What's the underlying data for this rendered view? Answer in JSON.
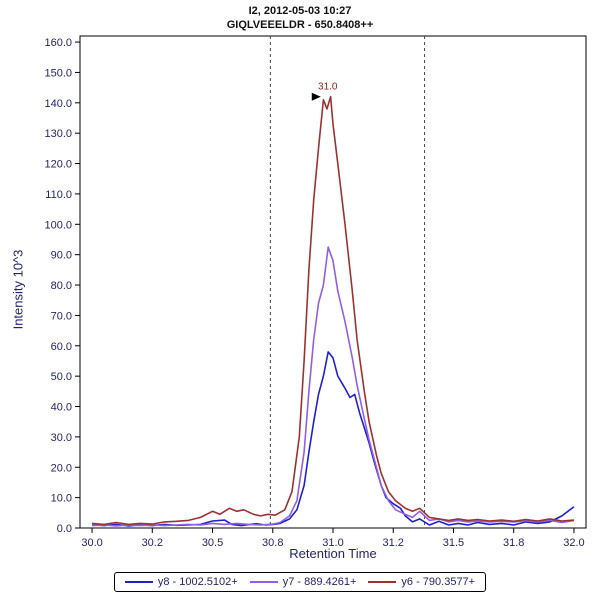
{
  "header": {
    "title_line1": "I2, 2012-05-03 10:27",
    "title_line2": "GIQLVEEELDR - 650.8408++"
  },
  "chart_data": {
    "type": "line",
    "title": "I2, 2012-05-03 10:27",
    "subtitle": "GIQLVEEELDR - 650.8408++",
    "xlabel": "Retention Time",
    "ylabel": "Intensity 10^3",
    "xlim": [
      29.95,
      32.05
    ],
    "ylim": [
      0,
      162
    ],
    "grid": false,
    "legend_position": "bottom",
    "x_ticks": [
      {
        "v": 30.0,
        "label": "30.0"
      },
      {
        "v": 30.25,
        "label": "30.2"
      },
      {
        "v": 30.5,
        "label": "30.5"
      },
      {
        "v": 30.75,
        "label": "30.8"
      },
      {
        "v": 31.0,
        "label": "31.0"
      },
      {
        "v": 31.25,
        "label": "31.2"
      },
      {
        "v": 31.5,
        "label": "31.5"
      },
      {
        "v": 31.75,
        "label": "31.8"
      },
      {
        "v": 32.0,
        "label": "32.0"
      }
    ],
    "y_ticks": [
      {
        "v": 0,
        "label": "0.0"
      },
      {
        "v": 10,
        "label": "10.0"
      },
      {
        "v": 20,
        "label": "20.0"
      },
      {
        "v": 30,
        "label": "30.0"
      },
      {
        "v": 40,
        "label": "40.0"
      },
      {
        "v": 50,
        "label": "50.0"
      },
      {
        "v": 60,
        "label": "60.0"
      },
      {
        "v": 70,
        "label": "70.0"
      },
      {
        "v": 80,
        "label": "80.0"
      },
      {
        "v": 90,
        "label": "90.0"
      },
      {
        "v": 100,
        "label": "100.0"
      },
      {
        "v": 110,
        "label": "110.0"
      },
      {
        "v": 120,
        "label": "120.0"
      },
      {
        "v": 130,
        "label": "130.0"
      },
      {
        "v": 140,
        "label": "140.0"
      },
      {
        "v": 150,
        "label": "150.0"
      },
      {
        "v": 160,
        "label": "160.0"
      }
    ],
    "integration_boundaries": [
      30.74,
      31.38
    ],
    "peak_annotation": {
      "x": 30.97,
      "y": 142,
      "label": "31.0"
    },
    "series": [
      {
        "name": "y8 - 1002.5102+",
        "color": "#2020cc",
        "points": [
          [
            30.0,
            1.0
          ],
          [
            30.05,
            0.8
          ],
          [
            30.1,
            1.2
          ],
          [
            30.15,
            0.7
          ],
          [
            30.2,
            1.0
          ],
          [
            30.25,
            0.8
          ],
          [
            30.3,
            1.2
          ],
          [
            30.35,
            0.9
          ],
          [
            30.4,
            1.0
          ],
          [
            30.45,
            1.2
          ],
          [
            30.5,
            2.3
          ],
          [
            30.55,
            2.6
          ],
          [
            30.58,
            1.2
          ],
          [
            30.62,
            0.8
          ],
          [
            30.68,
            1.4
          ],
          [
            30.72,
            1.0
          ],
          [
            30.75,
            1.2
          ],
          [
            30.78,
            1.5
          ],
          [
            30.82,
            3.0
          ],
          [
            30.85,
            6.0
          ],
          [
            30.88,
            14.0
          ],
          [
            30.9,
            25.0
          ],
          [
            30.92,
            35.0
          ],
          [
            30.94,
            44.0
          ],
          [
            30.96,
            50.0
          ],
          [
            30.98,
            58.0
          ],
          [
            31.0,
            56.0
          ],
          [
            31.02,
            50.0
          ],
          [
            31.05,
            46.0
          ],
          [
            31.07,
            43.0
          ],
          [
            31.09,
            44.0
          ],
          [
            31.11,
            38.0
          ],
          [
            31.13,
            33.0
          ],
          [
            31.15,
            28.0
          ],
          [
            31.17,
            22.0
          ],
          [
            31.2,
            14.0
          ],
          [
            31.22,
            10.0
          ],
          [
            31.25,
            8.0
          ],
          [
            31.28,
            6.5
          ],
          [
            31.3,
            4.0
          ],
          [
            31.33,
            2.0
          ],
          [
            31.36,
            3.0
          ],
          [
            31.4,
            1.0
          ],
          [
            31.44,
            2.2
          ],
          [
            31.48,
            1.0
          ],
          [
            31.52,
            1.5
          ],
          [
            31.56,
            1.0
          ],
          [
            31.6,
            1.8
          ],
          [
            31.65,
            1.2
          ],
          [
            31.7,
            1.5
          ],
          [
            31.75,
            1.0
          ],
          [
            31.8,
            2.0
          ],
          [
            31.85,
            1.5
          ],
          [
            31.9,
            2.0
          ],
          [
            31.95,
            4.0
          ],
          [
            32.0,
            7.0
          ]
        ]
      },
      {
        "name": "y7 - 889.4261+",
        "color": "#8f5fe8",
        "points": [
          [
            30.0,
            0.8
          ],
          [
            30.05,
            1.0
          ],
          [
            30.1,
            0.7
          ],
          [
            30.15,
            1.0
          ],
          [
            30.2,
            0.8
          ],
          [
            30.25,
            1.0
          ],
          [
            30.3,
            0.8
          ],
          [
            30.35,
            1.0
          ],
          [
            30.4,
            1.2
          ],
          [
            30.45,
            1.0
          ],
          [
            30.5,
            1.5
          ],
          [
            30.55,
            1.2
          ],
          [
            30.6,
            1.5
          ],
          [
            30.65,
            1.2
          ],
          [
            30.7,
            1.0
          ],
          [
            30.75,
            1.3
          ],
          [
            30.78,
            1.8
          ],
          [
            30.82,
            4.0
          ],
          [
            30.85,
            9.0
          ],
          [
            30.88,
            25.0
          ],
          [
            30.9,
            45.0
          ],
          [
            30.92,
            62.0
          ],
          [
            30.94,
            74.0
          ],
          [
            30.96,
            80.0
          ],
          [
            30.98,
            92.5
          ],
          [
            31.0,
            88.0
          ],
          [
            31.02,
            78.0
          ],
          [
            31.05,
            68.0
          ],
          [
            31.08,
            56.0
          ],
          [
            31.1,
            47.0
          ],
          [
            31.13,
            36.0
          ],
          [
            31.15,
            29.0
          ],
          [
            31.18,
            20.0
          ],
          [
            31.2,
            14.0
          ],
          [
            31.23,
            9.0
          ],
          [
            31.26,
            6.0
          ],
          [
            31.3,
            4.5
          ],
          [
            31.33,
            3.5
          ],
          [
            31.36,
            5.5
          ],
          [
            31.4,
            2.5
          ],
          [
            31.44,
            3.0
          ],
          [
            31.48,
            2.0
          ],
          [
            31.52,
            2.5
          ],
          [
            31.56,
            2.0
          ],
          [
            31.6,
            2.3
          ],
          [
            31.65,
            2.0
          ],
          [
            31.7,
            2.2
          ],
          [
            31.75,
            2.0
          ],
          [
            31.8,
            2.4
          ],
          [
            31.85,
            2.0
          ],
          [
            31.9,
            2.5
          ],
          [
            31.95,
            1.8
          ],
          [
            32.0,
            2.5
          ]
        ]
      },
      {
        "name": "y6 - 790.3577+",
        "color": "#9b3232",
        "points": [
          [
            30.0,
            1.5
          ],
          [
            30.05,
            1.2
          ],
          [
            30.1,
            1.8
          ],
          [
            30.15,
            1.2
          ],
          [
            30.2,
            1.5
          ],
          [
            30.25,
            1.3
          ],
          [
            30.3,
            2.0
          ],
          [
            30.35,
            2.2
          ],
          [
            30.4,
            2.5
          ],
          [
            30.45,
            3.5
          ],
          [
            30.5,
            5.5
          ],
          [
            30.53,
            4.5
          ],
          [
            30.57,
            6.5
          ],
          [
            30.6,
            5.5
          ],
          [
            30.63,
            6.0
          ],
          [
            30.67,
            4.5
          ],
          [
            30.7,
            4.0
          ],
          [
            30.73,
            4.5
          ],
          [
            30.76,
            4.2
          ],
          [
            30.8,
            6.0
          ],
          [
            30.83,
            12.0
          ],
          [
            30.86,
            30.0
          ],
          [
            30.88,
            55.0
          ],
          [
            30.9,
            85.0
          ],
          [
            30.92,
            108.0
          ],
          [
            30.94,
            125.0
          ],
          [
            30.96,
            141.0
          ],
          [
            30.975,
            138.0
          ],
          [
            30.99,
            142.0
          ],
          [
            31.0,
            133.0
          ],
          [
            31.02,
            120.0
          ],
          [
            31.05,
            100.0
          ],
          [
            31.08,
            78.0
          ],
          [
            31.1,
            62.0
          ],
          [
            31.13,
            45.0
          ],
          [
            31.15,
            35.0
          ],
          [
            31.18,
            24.0
          ],
          [
            31.2,
            18.0
          ],
          [
            31.23,
            12.0
          ],
          [
            31.26,
            9.0
          ],
          [
            31.3,
            6.5
          ],
          [
            31.33,
            5.5
          ],
          [
            31.36,
            6.5
          ],
          [
            31.4,
            3.5
          ],
          [
            31.44,
            3.0
          ],
          [
            31.48,
            2.5
          ],
          [
            31.52,
            3.0
          ],
          [
            31.56,
            2.5
          ],
          [
            31.6,
            2.8
          ],
          [
            31.65,
            2.3
          ],
          [
            31.7,
            2.6
          ],
          [
            31.75,
            2.2
          ],
          [
            31.8,
            2.8
          ],
          [
            31.85,
            2.3
          ],
          [
            31.9,
            3.0
          ],
          [
            31.95,
            2.3
          ],
          [
            32.0,
            2.6
          ]
        ]
      }
    ],
    "colors": {
      "frame": "#000000",
      "tick_text": "#24246a",
      "boundary_line": "#444444",
      "annotation_text": "#8b2020",
      "apex_marker": "#000000"
    }
  }
}
